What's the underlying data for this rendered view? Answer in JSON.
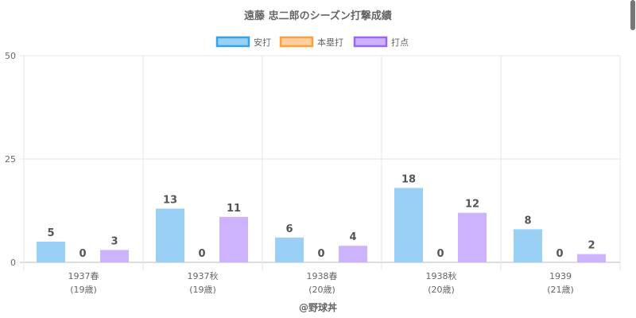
{
  "chart_data": {
    "type": "bar",
    "title": "遠藤 忠二郎のシーズン打撃成績",
    "categories": [
      [
        "1937春",
        "(19歳)"
      ],
      [
        "1937秋",
        "(19歳)"
      ],
      [
        "1938春",
        "(20歳)"
      ],
      [
        "1938秋",
        "(20歳)"
      ],
      [
        "1939",
        "(21歳)"
      ]
    ],
    "series": [
      {
        "name": "安打",
        "values": [
          5,
          13,
          6,
          18,
          8
        ],
        "fill": "#9ad0f5",
        "border": "#36a2eb"
      },
      {
        "name": "本塁打",
        "values": [
          0,
          0,
          0,
          0,
          0
        ],
        "fill": "#ffcf9f",
        "border": "#ff9f40"
      },
      {
        "name": "打点",
        "values": [
          3,
          11,
          4,
          12,
          2
        ],
        "fill": "#cdb3ff",
        "border": "#9966ff"
      }
    ],
    "ylim": [
      0,
      50
    ],
    "yticks": [
      "0",
      "25",
      "50"
    ],
    "legend": "top",
    "grid": true,
    "credit": "@野球丼"
  }
}
